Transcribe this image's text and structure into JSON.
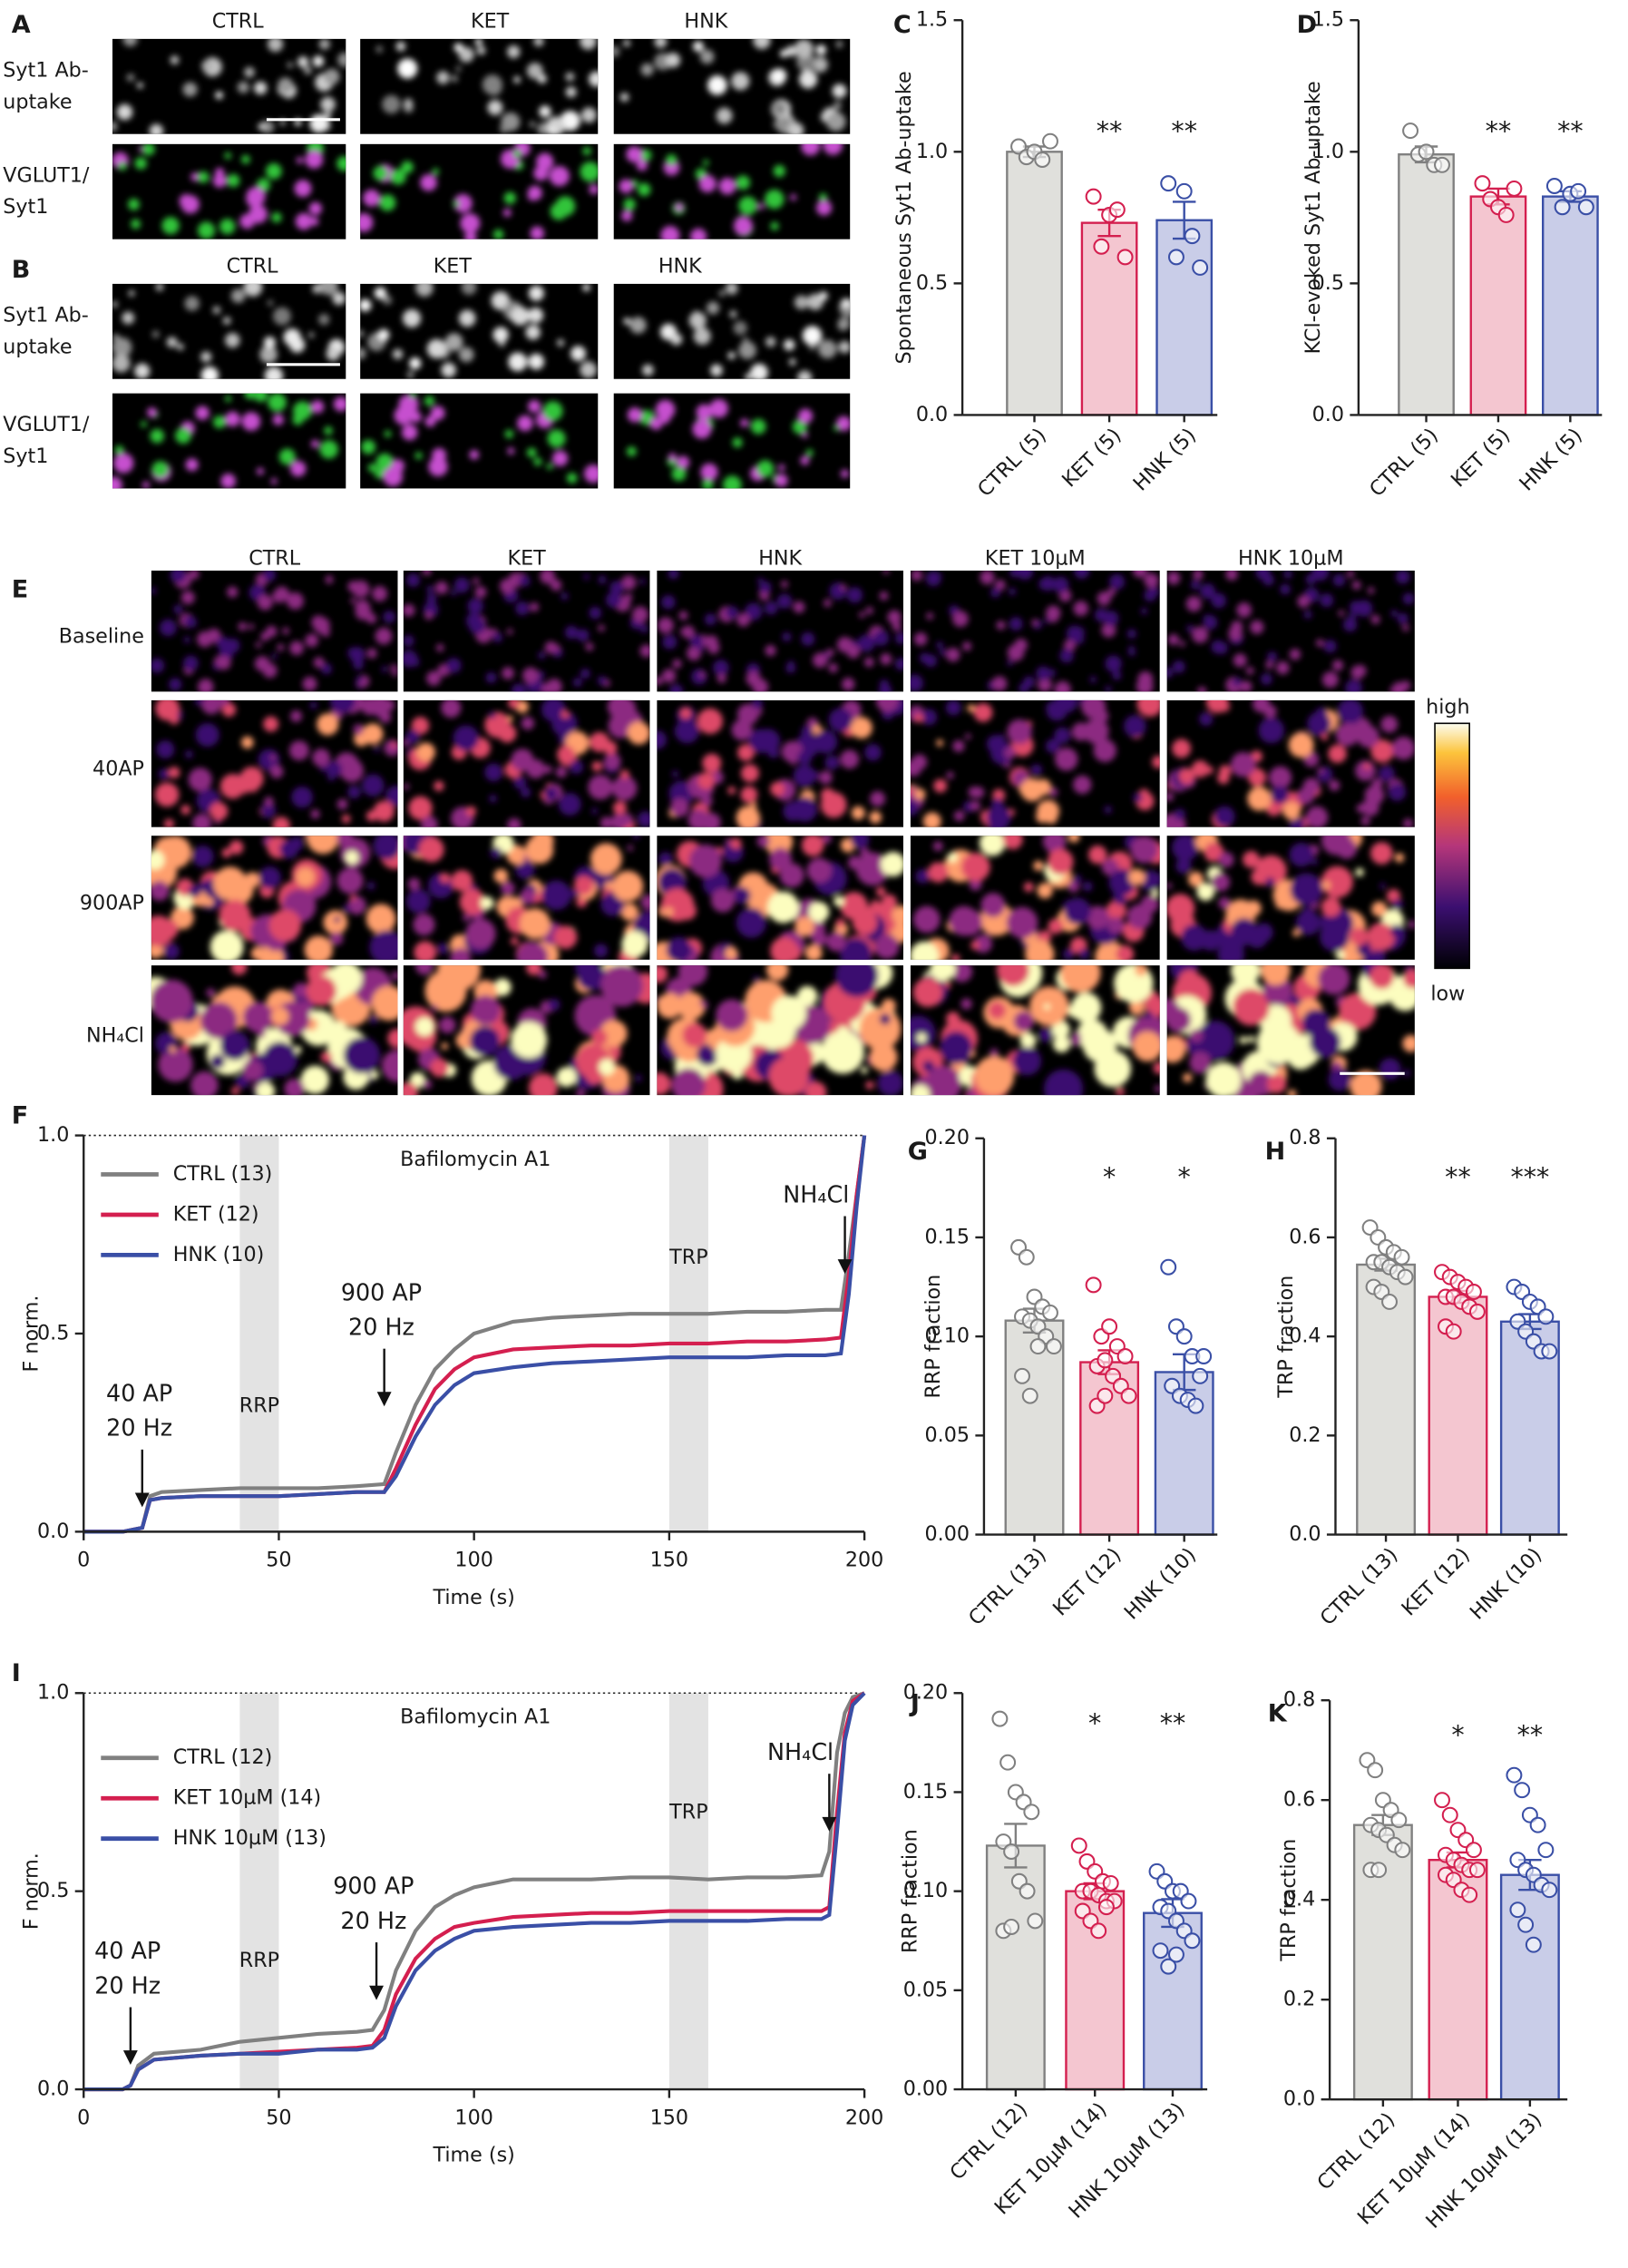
{
  "images": [
    {
      "panel": "A",
      "columns": [
        "CTRL",
        "KET",
        "HNK"
      ],
      "rows": [
        [
          "Syt1 Ab-",
          "uptake"
        ],
        [
          "VGLUT1/",
          "Syt1"
        ]
      ]
    },
    {
      "panel": "B",
      "columns": [
        "CTRL",
        "KET",
        "HNK"
      ],
      "rows": [
        [
          "Syt1 Ab-",
          "uptake"
        ],
        [
          "VGLUT1/",
          "Syt1"
        ]
      ]
    },
    {
      "panel": "E",
      "columns": [
        "CTRL",
        "KET",
        "HNK",
        "KET 10µM",
        "HNK 10µM"
      ],
      "rows": [
        "Baseline",
        "40AP",
        "900AP",
        "NH₄Cl"
      ],
      "colorbar": {
        "high": "high",
        "low": "low"
      }
    }
  ],
  "chart_data": [
    {
      "type": "bar",
      "panel": "C",
      "ylabel": "Spontaneous Syt1 Ab-uptake",
      "categories": [
        "CTRL (5)",
        "KET (5)",
        "HNK (5)"
      ],
      "values": [
        1.0,
        0.73,
        0.74
      ],
      "errors": [
        0.02,
        0.05,
        0.07
      ],
      "points": [
        [
          1.02,
          0.98,
          1.0,
          0.97,
          1.04
        ],
        [
          0.83,
          0.64,
          0.76,
          0.78,
          0.6
        ],
        [
          0.88,
          0.6,
          0.85,
          0.68,
          0.56
        ]
      ],
      "significance": [
        null,
        "**",
        "**"
      ],
      "colors": [
        "#808080",
        "#d41f4f",
        "#3a4fa6"
      ],
      "fill_colors": [
        "#e0e0dc",
        "#f4c6d0",
        "#c9cde8"
      ],
      "ylim": [
        0,
        1.5
      ],
      "yticks": [
        {
          "value": 0,
          "label": "0.0"
        },
        0.5,
        {
          "value": 1,
          "label": "1.0"
        },
        1.5
      ]
    },
    {
      "type": "bar",
      "panel": "D",
      "ylabel": "KCl-evoked Syt1 Ab-uptake",
      "categories": [
        "CTRL (5)",
        "KET (5)",
        "HNK (5)"
      ],
      "values": [
        0.99,
        0.83,
        0.83
      ],
      "errors": [
        0.03,
        0.03,
        0.02
      ],
      "points": [
        [
          1.08,
          0.99,
          1.0,
          0.95,
          0.95
        ],
        [
          0.88,
          0.82,
          0.79,
          0.76,
          0.86
        ],
        [
          0.87,
          0.79,
          0.84,
          0.85,
          0.79
        ]
      ],
      "significance": [
        null,
        "**",
        "**"
      ],
      "colors": [
        "#808080",
        "#d41f4f",
        "#3a4fa6"
      ],
      "fill_colors": [
        "#e0e0dc",
        "#f4c6d0",
        "#c9cde8"
      ],
      "ylim": [
        0,
        1.5
      ],
      "yticks": [
        {
          "value": 0,
          "label": "0.0"
        },
        0.5,
        {
          "value": 1,
          "label": "1.0"
        },
        1.5
      ]
    },
    {
      "type": "line",
      "panel": "F",
      "xlabel": "Time (s)",
      "ylabel": "F norm.",
      "ref_line": 1.0,
      "title": "Bafilomycin A1",
      "bands": [
        {
          "label": "RRP",
          "range": [
            40,
            50
          ]
        },
        {
          "label": "TRP",
          "range": [
            150,
            160
          ]
        }
      ],
      "arrows": [
        {
          "lines": [
            "40 AP",
            "20 Hz"
          ],
          "x": 15
        },
        {
          "lines": [
            "900 AP",
            "20 Hz"
          ],
          "x": 77
        },
        {
          "lines": [
            "NH₄Cl"
          ],
          "x": 195
        }
      ],
      "x": [
        0,
        10,
        15,
        17,
        20,
        30,
        40,
        50,
        60,
        70,
        77,
        80,
        85,
        90,
        95,
        100,
        110,
        120,
        130,
        140,
        150,
        160,
        170,
        180,
        190,
        194,
        196,
        198,
        200
      ],
      "series": [
        {
          "name": "CTRL (13)",
          "color": "#808080",
          "values": [
            0,
            0,
            0.01,
            0.09,
            0.1,
            0.105,
            0.11,
            0.11,
            0.11,
            0.115,
            0.12,
            0.2,
            0.32,
            0.41,
            0.46,
            0.5,
            0.53,
            0.54,
            0.545,
            0.55,
            0.55,
            0.55,
            0.555,
            0.555,
            0.56,
            0.56,
            0.7,
            0.85,
            1.0
          ]
        },
        {
          "name": "KET (12)",
          "color": "#d41f4f",
          "values": [
            0,
            0,
            0.01,
            0.08,
            0.085,
            0.09,
            0.09,
            0.09,
            0.095,
            0.1,
            0.1,
            0.16,
            0.27,
            0.36,
            0.41,
            0.44,
            0.46,
            0.465,
            0.47,
            0.47,
            0.475,
            0.475,
            0.48,
            0.48,
            0.485,
            0.49,
            0.65,
            0.85,
            1.0
          ]
        },
        {
          "name": "HNK (10)",
          "color": "#3a4fa6",
          "values": [
            0,
            0,
            0.01,
            0.08,
            0.085,
            0.09,
            0.09,
            0.09,
            0.095,
            0.1,
            0.1,
            0.14,
            0.24,
            0.32,
            0.37,
            0.4,
            0.415,
            0.425,
            0.43,
            0.435,
            0.44,
            0.44,
            0.44,
            0.445,
            0.445,
            0.45,
            0.6,
            0.82,
            1.0
          ]
        }
      ],
      "xlim": [
        0,
        200
      ],
      "xticks": [
        0,
        50,
        100,
        150,
        200
      ],
      "ylim": [
        0,
        1
      ],
      "yticks": [
        {
          "value": 0,
          "label": "0.0"
        },
        0.5,
        {
          "value": 1,
          "label": "1.0"
        }
      ]
    },
    {
      "type": "bar",
      "panel": "G",
      "ylabel": "RRP fraction",
      "categories": [
        "CTRL (13)",
        "KET (12)",
        "HNK (10)"
      ],
      "values": [
        0.108,
        0.087,
        0.082
      ],
      "errors": [
        0.006,
        0.006,
        0.009
      ],
      "points": [
        [
          0.145,
          0.14,
          0.12,
          0.115,
          0.112,
          0.11,
          0.108,
          0.105,
          0.1,
          0.095,
          0.08,
          0.07,
          0.095
        ],
        [
          0.126,
          0.1,
          0.105,
          0.095,
          0.09,
          0.085,
          0.088,
          0.08,
          0.075,
          0.07,
          0.065,
          0.07
        ],
        [
          0.135,
          0.105,
          0.1,
          0.09,
          0.08,
          0.075,
          0.07,
          0.068,
          0.065,
          0.09
        ]
      ],
      "significance": [
        null,
        "*",
        "*"
      ],
      "colors": [
        "#808080",
        "#d41f4f",
        "#3a4fa6"
      ],
      "fill_colors": [
        "#e0e0dc",
        "#f4c6d0",
        "#c9cde8"
      ],
      "ylim": [
        0,
        0.2
      ],
      "yticks": [
        {
          "value": 0,
          "label": "0.00"
        },
        0.05,
        {
          "value": 0.1,
          "label": "0.10"
        },
        0.15,
        {
          "value": 0.2,
          "label": "0.20"
        }
      ]
    },
    {
      "type": "bar",
      "panel": "H",
      "ylabel": "TRP fraction",
      "categories": [
        "CTRL (13)",
        "KET (12)",
        "HNK (10)"
      ],
      "values": [
        0.545,
        0.48,
        0.43
      ],
      "errors": [
        0.012,
        0.012,
        0.015
      ],
      "points": [
        [
          0.62,
          0.6,
          0.58,
          0.57,
          0.56,
          0.55,
          0.55,
          0.54,
          0.53,
          0.52,
          0.5,
          0.49,
          0.47
        ],
        [
          0.53,
          0.52,
          0.51,
          0.5,
          0.49,
          0.48,
          0.48,
          0.47,
          0.46,
          0.45,
          0.42,
          0.41
        ],
        [
          0.5,
          0.49,
          0.47,
          0.46,
          0.44,
          0.43,
          0.41,
          0.39,
          0.37,
          0.37
        ]
      ],
      "significance": [
        null,
        "**",
        "***"
      ],
      "colors": [
        "#808080",
        "#d41f4f",
        "#3a4fa6"
      ],
      "fill_colors": [
        "#e0e0dc",
        "#f4c6d0",
        "#c9cde8"
      ],
      "ylim": [
        0,
        0.8
      ],
      "yticks": [
        {
          "value": 0,
          "label": "0.0"
        },
        0.2,
        0.4,
        0.6,
        0.8
      ]
    },
    {
      "type": "line",
      "panel": "I",
      "xlabel": "Time (s)",
      "ylabel": "F norm.",
      "ref_line": 1.0,
      "title": "Bafilomycin A1",
      "bands": [
        {
          "label": "RRP",
          "range": [
            40,
            50
          ]
        },
        {
          "label": "TRP",
          "range": [
            150,
            160
          ]
        }
      ],
      "arrows": [
        {
          "lines": [
            "40 AP",
            "20 Hz"
          ],
          "x": 12
        },
        {
          "lines": [
            "900 AP",
            "20 Hz"
          ],
          "x": 75
        },
        {
          "lines": [
            "NH₄Cl"
          ],
          "x": 191
        }
      ],
      "x": [
        0,
        10,
        12,
        14,
        18,
        30,
        40,
        50,
        60,
        70,
        74,
        77,
        80,
        85,
        90,
        95,
        100,
        110,
        120,
        130,
        140,
        150,
        160,
        170,
        180,
        189,
        191,
        193,
        195,
        197,
        200
      ],
      "series": [
        {
          "name": "CTRL (12)",
          "color": "#808080",
          "values": [
            0,
            0,
            0.01,
            0.06,
            0.09,
            0.1,
            0.12,
            0.13,
            0.14,
            0.145,
            0.15,
            0.2,
            0.3,
            0.4,
            0.46,
            0.49,
            0.51,
            0.53,
            0.53,
            0.53,
            0.535,
            0.535,
            0.53,
            0.535,
            0.535,
            0.54,
            0.6,
            0.85,
            0.95,
            0.99,
            1.0
          ]
        },
        {
          "name": "KET 10µM (14)",
          "color": "#d41f4f",
          "values": [
            0,
            0,
            0.01,
            0.05,
            0.075,
            0.085,
            0.09,
            0.095,
            0.1,
            0.105,
            0.11,
            0.15,
            0.24,
            0.33,
            0.38,
            0.41,
            0.42,
            0.435,
            0.44,
            0.445,
            0.445,
            0.45,
            0.45,
            0.45,
            0.45,
            0.45,
            0.46,
            0.7,
            0.9,
            0.98,
            1.0
          ]
        },
        {
          "name": "HNK 10µM (13)",
          "color": "#3a4fa6",
          "values": [
            0,
            0,
            0.01,
            0.05,
            0.075,
            0.085,
            0.09,
            0.09,
            0.1,
            0.1,
            0.105,
            0.13,
            0.21,
            0.3,
            0.35,
            0.38,
            0.4,
            0.41,
            0.415,
            0.42,
            0.42,
            0.425,
            0.425,
            0.425,
            0.43,
            0.43,
            0.44,
            0.65,
            0.88,
            0.97,
            1.0
          ]
        }
      ],
      "xlim": [
        0,
        200
      ],
      "xticks": [
        0,
        50,
        100,
        150,
        200
      ],
      "ylim": [
        0,
        1
      ],
      "yticks": [
        {
          "value": 0,
          "label": "0.0"
        },
        0.5,
        {
          "value": 1,
          "label": "1.0"
        }
      ]
    },
    {
      "type": "bar",
      "panel": "J",
      "ylabel": "RRP fraction",
      "categories": [
        "CTRL (12)",
        "KET 10µM (14)",
        "HNK 10µM (13)"
      ],
      "values": [
        0.123,
        0.1,
        0.089
      ],
      "errors": [
        0.011,
        0.004,
        0.007
      ],
      "points": [
        [
          0.187,
          0.165,
          0.15,
          0.145,
          0.14,
          0.125,
          0.12,
          0.105,
          0.1,
          0.085,
          0.08,
          0.082
        ],
        [
          0.123,
          0.115,
          0.11,
          0.105,
          0.104,
          0.1,
          0.1,
          0.098,
          0.095,
          0.095,
          0.09,
          0.085,
          0.08,
          0.092
        ],
        [
          0.11,
          0.105,
          0.1,
          0.1,
          0.095,
          0.092,
          0.09,
          0.085,
          0.08,
          0.075,
          0.07,
          0.062,
          0.068
        ]
      ],
      "significance": [
        null,
        "*",
        "**"
      ],
      "colors": [
        "#808080",
        "#d41f4f",
        "#3a4fa6"
      ],
      "fill_colors": [
        "#e0e0dc",
        "#f4c6d0",
        "#c9cde8"
      ],
      "ylim": [
        0,
        0.2
      ],
      "yticks": [
        {
          "value": 0,
          "label": "0.00"
        },
        0.05,
        {
          "value": 0.1,
          "label": "0.10"
        },
        0.15,
        {
          "value": 0.2,
          "label": "0.20"
        }
      ]
    },
    {
      "type": "bar",
      "panel": "K",
      "ylabel": "TRP fraction",
      "categories": [
        "CTRL (12)",
        "KET 10µM (14)",
        "HNK 10µM (13)"
      ],
      "values": [
        0.55,
        0.48,
        0.45
      ],
      "errors": [
        0.02,
        0.015,
        0.03
      ],
      "points": [
        [
          0.68,
          0.66,
          0.6,
          0.58,
          0.56,
          0.55,
          0.54,
          0.53,
          0.51,
          0.5,
          0.46,
          0.46
        ],
        [
          0.6,
          0.57,
          0.54,
          0.52,
          0.5,
          0.49,
          0.48,
          0.47,
          0.46,
          0.46,
          0.45,
          0.44,
          0.42,
          0.41
        ],
        [
          0.65,
          0.62,
          0.57,
          0.55,
          0.5,
          0.48,
          0.46,
          0.45,
          0.43,
          0.42,
          0.38,
          0.35,
          0.31
        ]
      ],
      "significance": [
        null,
        "*",
        "**"
      ],
      "colors": [
        "#808080",
        "#d41f4f",
        "#3a4fa6"
      ],
      "fill_colors": [
        "#e0e0dc",
        "#f4c6d0",
        "#c9cde8"
      ],
      "ylim": [
        0,
        0.8
      ],
      "yticks": [
        {
          "value": 0,
          "label": "0.0"
        },
        0.2,
        0.4,
        0.6,
        0.8
      ]
    }
  ]
}
